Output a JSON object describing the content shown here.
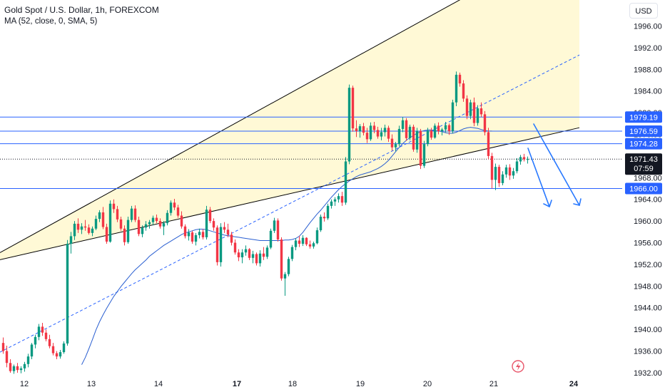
{
  "legend": {
    "title": "Gold Spot / U.S. Dollar, 1h, FOREXCOM",
    "indicator": "MA (52, close, 0, SMA, 5)"
  },
  "currency": "USD",
  "colors": {
    "up": "#089981",
    "down": "#f23645",
    "channel_fill": "#fff9d6",
    "channel_line": "#000000",
    "midline": "#2962ff",
    "ma": "#2a5fd1",
    "hline": "#2962ff",
    "arrow": "#2979ff",
    "price_badge": "#131722",
    "level_badge": "#2962ff"
  },
  "chart_data": {
    "type": "candlestick",
    "symbol": "Gold Spot / U.S. Dollar",
    "timeframe": "1h",
    "exchange": "FOREXCOM",
    "y_axis": {
      "ticks": [
        1996.0,
        1992.0,
        1988.0,
        1984.0,
        1980.0,
        1976.0,
        1972.0,
        1968.0,
        1964.0,
        1960.0,
        1956.0,
        1952.0,
        1948.0,
        1944.0,
        1940.0,
        1936.0,
        1932.0
      ],
      "ylim": [
        1931.6,
        2000.8
      ]
    },
    "x_axis": {
      "ticks": [
        {
          "label": "12",
          "bold": false
        },
        {
          "label": "13",
          "bold": false
        },
        {
          "label": "14",
          "bold": false
        },
        {
          "label": "17",
          "bold": true
        },
        {
          "label": "18",
          "bold": false
        },
        {
          "label": "19",
          "bold": false
        },
        {
          "label": "20",
          "bold": false
        },
        {
          "label": "21",
          "bold": false
        },
        {
          "label": "24",
          "bold": true
        }
      ]
    },
    "candles": [
      [
        1937.5,
        1938.5,
        1935.5,
        1936.0
      ],
      [
        1936.0,
        1937.0,
        1933.0,
        1933.8
      ],
      [
        1933.8,
        1934.5,
        1932.0,
        1932.3
      ],
      [
        1932.3,
        1933.5,
        1931.8,
        1933.2
      ],
      [
        1933.2,
        1933.8,
        1932.0,
        1932.5
      ],
      [
        1932.5,
        1933.2,
        1931.9,
        1932.8
      ],
      [
        1932.8,
        1934.0,
        1932.2,
        1933.6
      ],
      [
        1933.6,
        1935.5,
        1933.0,
        1935.0
      ],
      [
        1935.0,
        1937.5,
        1934.5,
        1937.2
      ],
      [
        1937.2,
        1939.0,
        1936.5,
        1938.6
      ],
      [
        1938.6,
        1941.0,
        1938.0,
        1940.5
      ],
      [
        1940.5,
        1941.2,
        1938.8,
        1939.4
      ],
      [
        1939.4,
        1940.0,
        1937.8,
        1938.2
      ],
      [
        1938.2,
        1939.0,
        1936.5,
        1936.9
      ],
      [
        1936.9,
        1937.5,
        1935.2,
        1935.6
      ],
      [
        1935.6,
        1936.0,
        1934.5,
        1935.0
      ],
      [
        1935.0,
        1936.2,
        1934.6,
        1935.8
      ],
      [
        1935.8,
        1937.8,
        1935.5,
        1937.4
      ],
      [
        1937.4,
        1956.5,
        1937.0,
        1955.8
      ],
      [
        1955.8,
        1958.0,
        1954.0,
        1957.2
      ],
      [
        1957.2,
        1960.0,
        1956.5,
        1959.5
      ],
      [
        1959.5,
        1960.5,
        1957.8,
        1958.4
      ],
      [
        1958.4,
        1959.6,
        1957.6,
        1959.0
      ],
      [
        1959.0,
        1960.2,
        1958.2,
        1958.8
      ],
      [
        1958.8,
        1959.4,
        1957.5,
        1957.8
      ],
      [
        1957.8,
        1959.0,
        1957.2,
        1958.6
      ],
      [
        1958.6,
        1961.0,
        1958.3,
        1960.4
      ],
      [
        1960.4,
        1962.0,
        1959.8,
        1961.6
      ],
      [
        1961.6,
        1962.6,
        1958.5,
        1958.9
      ],
      [
        1958.9,
        1959.5,
        1955.8,
        1956.2
      ],
      [
        1956.2,
        1963.8,
        1956.0,
        1963.2
      ],
      [
        1963.2,
        1964.0,
        1961.5,
        1962.2
      ],
      [
        1962.2,
        1962.8,
        1959.8,
        1960.3
      ],
      [
        1960.3,
        1960.8,
        1958.2,
        1958.6
      ],
      [
        1958.6,
        1959.2,
        1955.5,
        1956.1
      ],
      [
        1956.1,
        1960.8,
        1955.8,
        1960.2
      ],
      [
        1960.2,
        1962.8,
        1959.8,
        1962.3
      ],
      [
        1962.3,
        1962.9,
        1959.8,
        1960.2
      ],
      [
        1960.2,
        1960.8,
        1957.2,
        1957.6
      ],
      [
        1957.6,
        1959.2,
        1957.0,
        1958.8
      ],
      [
        1958.8,
        1960.0,
        1958.2,
        1959.4
      ],
      [
        1959.4,
        1960.2,
        1958.6,
        1959.8
      ],
      [
        1959.8,
        1961.0,
        1959.2,
        1960.6
      ],
      [
        1960.6,
        1961.2,
        1959.6,
        1960.0
      ],
      [
        1960.0,
        1960.5,
        1958.6,
        1959.0
      ],
      [
        1959.0,
        1960.0,
        1957.4,
        1959.6
      ],
      [
        1959.6,
        1962.0,
        1959.2,
        1961.5
      ],
      [
        1961.5,
        1963.8,
        1961.0,
        1963.4
      ],
      [
        1963.4,
        1964.1,
        1962.0,
        1962.5
      ],
      [
        1962.5,
        1963.0,
        1960.6,
        1961.0
      ],
      [
        1961.0,
        1961.8,
        1958.6,
        1959.0
      ],
      [
        1959.0,
        1959.4,
        1956.8,
        1957.2
      ],
      [
        1957.2,
        1958.5,
        1956.4,
        1957.9
      ],
      [
        1957.9,
        1958.2,
        1955.8,
        1956.2
      ],
      [
        1956.2,
        1957.8,
        1955.5,
        1957.4
      ],
      [
        1957.4,
        1958.6,
        1956.8,
        1958.0
      ],
      [
        1958.0,
        1958.5,
        1956.6,
        1957.0
      ],
      [
        1957.0,
        1962.8,
        1956.6,
        1962.1
      ],
      [
        1962.1,
        1962.6,
        1959.6,
        1960.0
      ],
      [
        1960.0,
        1960.5,
        1958.2,
        1958.8
      ],
      [
        1958.8,
        1959.2,
        1951.8,
        1952.4
      ],
      [
        1952.4,
        1959.6,
        1951.6,
        1958.9
      ],
      [
        1958.9,
        1959.8,
        1957.8,
        1958.4
      ],
      [
        1958.4,
        1959.5,
        1957.0,
        1957.5
      ],
      [
        1957.5,
        1958.0,
        1955.5,
        1956.0
      ],
      [
        1956.0,
        1956.6,
        1953.8,
        1954.2
      ],
      [
        1954.2,
        1954.8,
        1952.6,
        1953.3
      ],
      [
        1953.3,
        1954.8,
        1952.2,
        1954.2
      ],
      [
        1954.2,
        1955.5,
        1953.6,
        1954.8
      ],
      [
        1954.8,
        1955.0,
        1952.8,
        1953.2
      ],
      [
        1953.2,
        1954.5,
        1952.2,
        1953.9
      ],
      [
        1953.9,
        1954.2,
        1951.8,
        1952.2
      ],
      [
        1952.2,
        1954.6,
        1951.6,
        1954.0
      ],
      [
        1954.0,
        1955.2,
        1952.8,
        1953.4
      ],
      [
        1953.4,
        1955.5,
        1953.0,
        1955.1
      ],
      [
        1955.1,
        1958.6,
        1954.8,
        1958.2
      ],
      [
        1958.2,
        1960.6,
        1957.8,
        1960.1
      ],
      [
        1960.1,
        1960.5,
        1956.2,
        1956.6
      ],
      [
        1956.6,
        1957.0,
        1949.0,
        1949.4
      ],
      [
        1949.4,
        1950.6,
        1946.2,
        1950.2
      ],
      [
        1950.2,
        1953.4,
        1949.8,
        1953.0
      ],
      [
        1953.0,
        1955.6,
        1952.6,
        1955.2
      ],
      [
        1955.2,
        1956.8,
        1954.6,
        1956.4
      ],
      [
        1956.4,
        1957.2,
        1955.2,
        1955.8
      ],
      [
        1955.8,
        1957.4,
        1955.4,
        1956.9
      ],
      [
        1956.9,
        1957.0,
        1955.4,
        1955.7
      ],
      [
        1955.7,
        1956.4,
        1954.9,
        1955.3
      ],
      [
        1955.3,
        1956.2,
        1954.9,
        1955.9
      ],
      [
        1955.9,
        1958.8,
        1955.7,
        1958.3
      ],
      [
        1958.3,
        1961.2,
        1958.0,
        1960.8
      ],
      [
        1960.8,
        1961.6,
        1959.9,
        1960.5
      ],
      [
        1960.5,
        1963.2,
        1960.2,
        1962.8
      ],
      [
        1962.8,
        1964.0,
        1962.3,
        1963.6
      ],
      [
        1963.6,
        1964.4,
        1962.8,
        1964.0
      ],
      [
        1964.0,
        1965.1,
        1963.4,
        1964.6
      ],
      [
        1964.6,
        1965.4,
        1962.8,
        1963.4
      ],
      [
        1963.4,
        1971.8,
        1963.0,
        1971.0
      ],
      [
        1971.0,
        1985.2,
        1970.5,
        1984.6
      ],
      [
        1984.6,
        1985.0,
        1976.5,
        1977.1
      ],
      [
        1977.1,
        1978.6,
        1975.5,
        1976.6
      ],
      [
        1976.6,
        1977.9,
        1975.4,
        1977.5
      ],
      [
        1977.5,
        1978.1,
        1975.8,
        1976.3
      ],
      [
        1976.3,
        1977.2,
        1974.4,
        1975.1
      ],
      [
        1975.1,
        1978.2,
        1974.8,
        1977.6
      ],
      [
        1977.6,
        1978.3,
        1976.2,
        1976.8
      ],
      [
        1976.8,
        1977.4,
        1975.2,
        1975.6
      ],
      [
        1975.6,
        1977.2,
        1974.9,
        1976.4
      ],
      [
        1976.4,
        1977.8,
        1975.6,
        1977.2
      ],
      [
        1977.2,
        1977.6,
        1974.6,
        1975.2
      ],
      [
        1975.2,
        1976.0,
        1973.0,
        1973.6
      ],
      [
        1973.6,
        1974.6,
        1972.9,
        1974.2
      ],
      [
        1974.2,
        1977.6,
        1973.8,
        1977.0
      ],
      [
        1977.0,
        1979.2,
        1976.4,
        1978.6
      ],
      [
        1978.6,
        1979.0,
        1974.8,
        1975.3
      ],
      [
        1975.3,
        1977.8,
        1974.9,
        1977.4
      ],
      [
        1977.4,
        1977.8,
        1972.8,
        1973.2
      ],
      [
        1973.2,
        1977.2,
        1972.6,
        1976.6
      ],
      [
        1976.6,
        1977.0,
        1969.6,
        1970.2
      ],
      [
        1970.2,
        1974.8,
        1969.8,
        1974.2
      ],
      [
        1974.2,
        1977.2,
        1973.8,
        1976.7
      ],
      [
        1976.7,
        1977.2,
        1975.0,
        1975.4
      ],
      [
        1975.4,
        1978.0,
        1975.2,
        1977.6
      ],
      [
        1977.6,
        1978.2,
        1976.0,
        1976.6
      ],
      [
        1976.6,
        1977.2,
        1975.8,
        1976.9
      ],
      [
        1976.9,
        1978.3,
        1976.4,
        1977.7
      ],
      [
        1977.7,
        1978.0,
        1975.9,
        1976.6
      ],
      [
        1976.6,
        1982.4,
        1976.2,
        1981.9
      ],
      [
        1981.9,
        1987.6,
        1981.2,
        1987.0
      ],
      [
        1987.0,
        1987.4,
        1984.8,
        1985.4
      ],
      [
        1985.4,
        1986.0,
        1982.0,
        1982.6
      ],
      [
        1982.6,
        1983.2,
        1978.8,
        1979.4
      ],
      [
        1979.4,
        1982.4,
        1978.8,
        1981.9
      ],
      [
        1981.9,
        1982.8,
        1977.5,
        1978.1
      ],
      [
        1978.1,
        1981.4,
        1977.6,
        1980.8
      ],
      [
        1980.8,
        1981.9,
        1979.2,
        1979.7
      ],
      [
        1979.7,
        1980.3,
        1975.8,
        1976.4
      ],
      [
        1976.4,
        1977.2,
        1971.4,
        1972.0
      ],
      [
        1972.0,
        1972.6,
        1966.0,
        1967.6
      ],
      [
        1967.6,
        1970.6,
        1965.7,
        1970.0
      ],
      [
        1970.0,
        1970.4,
        1966.3,
        1967.0
      ],
      [
        1967.0,
        1969.2,
        1966.6,
        1968.6
      ],
      [
        1968.6,
        1970.4,
        1968.0,
        1969.9
      ],
      [
        1969.9,
        1970.5,
        1967.6,
        1968.4
      ],
      [
        1968.4,
        1969.8,
        1967.8,
        1969.2
      ],
      [
        1969.2,
        1971.6,
        1968.8,
        1971.0
      ],
      [
        1971.0,
        1972.2,
        1970.4,
        1971.8
      ],
      [
        1971.8,
        1972.4,
        1971.0,
        1971.4
      ],
      [
        1971.4,
        1971.9,
        1970.6,
        1971.43
      ]
    ],
    "moving_average": {
      "name": "MA (52, close, 0, SMA, 5)",
      "start_index": 22,
      "values": [
        1933.5,
        1934.8,
        1936.4,
        1938.1,
        1939.9,
        1941.4,
        1942.7,
        1943.9,
        1945.0,
        1946.1,
        1947.0,
        1947.9,
        1948.7,
        1949.5,
        1950.3,
        1951.0,
        1951.6,
        1952.2,
        1952.8,
        1953.5,
        1954.0,
        1954.5,
        1955.0,
        1955.5,
        1955.9,
        1956.3,
        1956.7,
        1957.1,
        1957.5,
        1957.8,
        1958.0,
        1958.2,
        1958.4,
        1958.5,
        1958.5,
        1958.4,
        1958.2,
        1958.0,
        1957.8,
        1957.6,
        1957.4,
        1957.3,
        1957.2,
        1957.1,
        1957.0,
        1956.9,
        1956.8,
        1956.7,
        1956.6,
        1956.5,
        1956.4,
        1956.4,
        1956.4,
        1956.4,
        1956.4,
        1956.4,
        1956.4,
        1956.5,
        1956.5,
        1956.6,
        1956.8,
        1957.2,
        1957.9,
        1958.8,
        1959.7,
        1960.5,
        1961.3,
        1962.0,
        1962.8,
        1963.6,
        1964.4,
        1965.1,
        1965.8,
        1966.4,
        1966.9,
        1967.4,
        1967.8,
        1968.2,
        1968.5,
        1968.7,
        1968.9,
        1969.1,
        1969.4,
        1969.7,
        1970.1,
        1970.6,
        1971.2,
        1972.0,
        1972.8,
        1973.6,
        1974.3,
        1974.9,
        1975.4,
        1975.8,
        1976.2,
        1976.5,
        1976.7,
        1976.8,
        1976.8,
        1976.7,
        1976.6,
        1976.5,
        1976.3,
        1976.2,
        1976.2,
        1976.4,
        1976.7,
        1977.0,
        1977.2,
        1977.3,
        1977.2,
        1977.1,
        1976.9,
        1976.7,
        1976.6,
        1976.6
      ]
    },
    "horizontal_levels": [
      {
        "value": 1979.19,
        "label": "1979.19"
      },
      {
        "value": 1976.59,
        "label": "1976.59"
      },
      {
        "value": 1974.28,
        "label": "1974.28"
      },
      {
        "value": 1966.0,
        "label": "1966.00"
      }
    ],
    "last_price": {
      "value": 1971.43,
      "label": "1971.43",
      "countdown": "07:59"
    },
    "channel": {
      "lower_line": [
        {
          "index": -8,
          "price": 1951.8
        },
        {
          "index": 172,
          "price": 1978.8
        }
      ],
      "upper_line": [
        {
          "index": -8,
          "price": 1951.6
        },
        {
          "index": 134,
          "price": 2003.0
        }
      ],
      "mid_line": [
        {
          "index": -8,
          "price": 1933.4
        },
        {
          "index": 172,
          "price": 1994.2
        }
      ]
    }
  }
}
